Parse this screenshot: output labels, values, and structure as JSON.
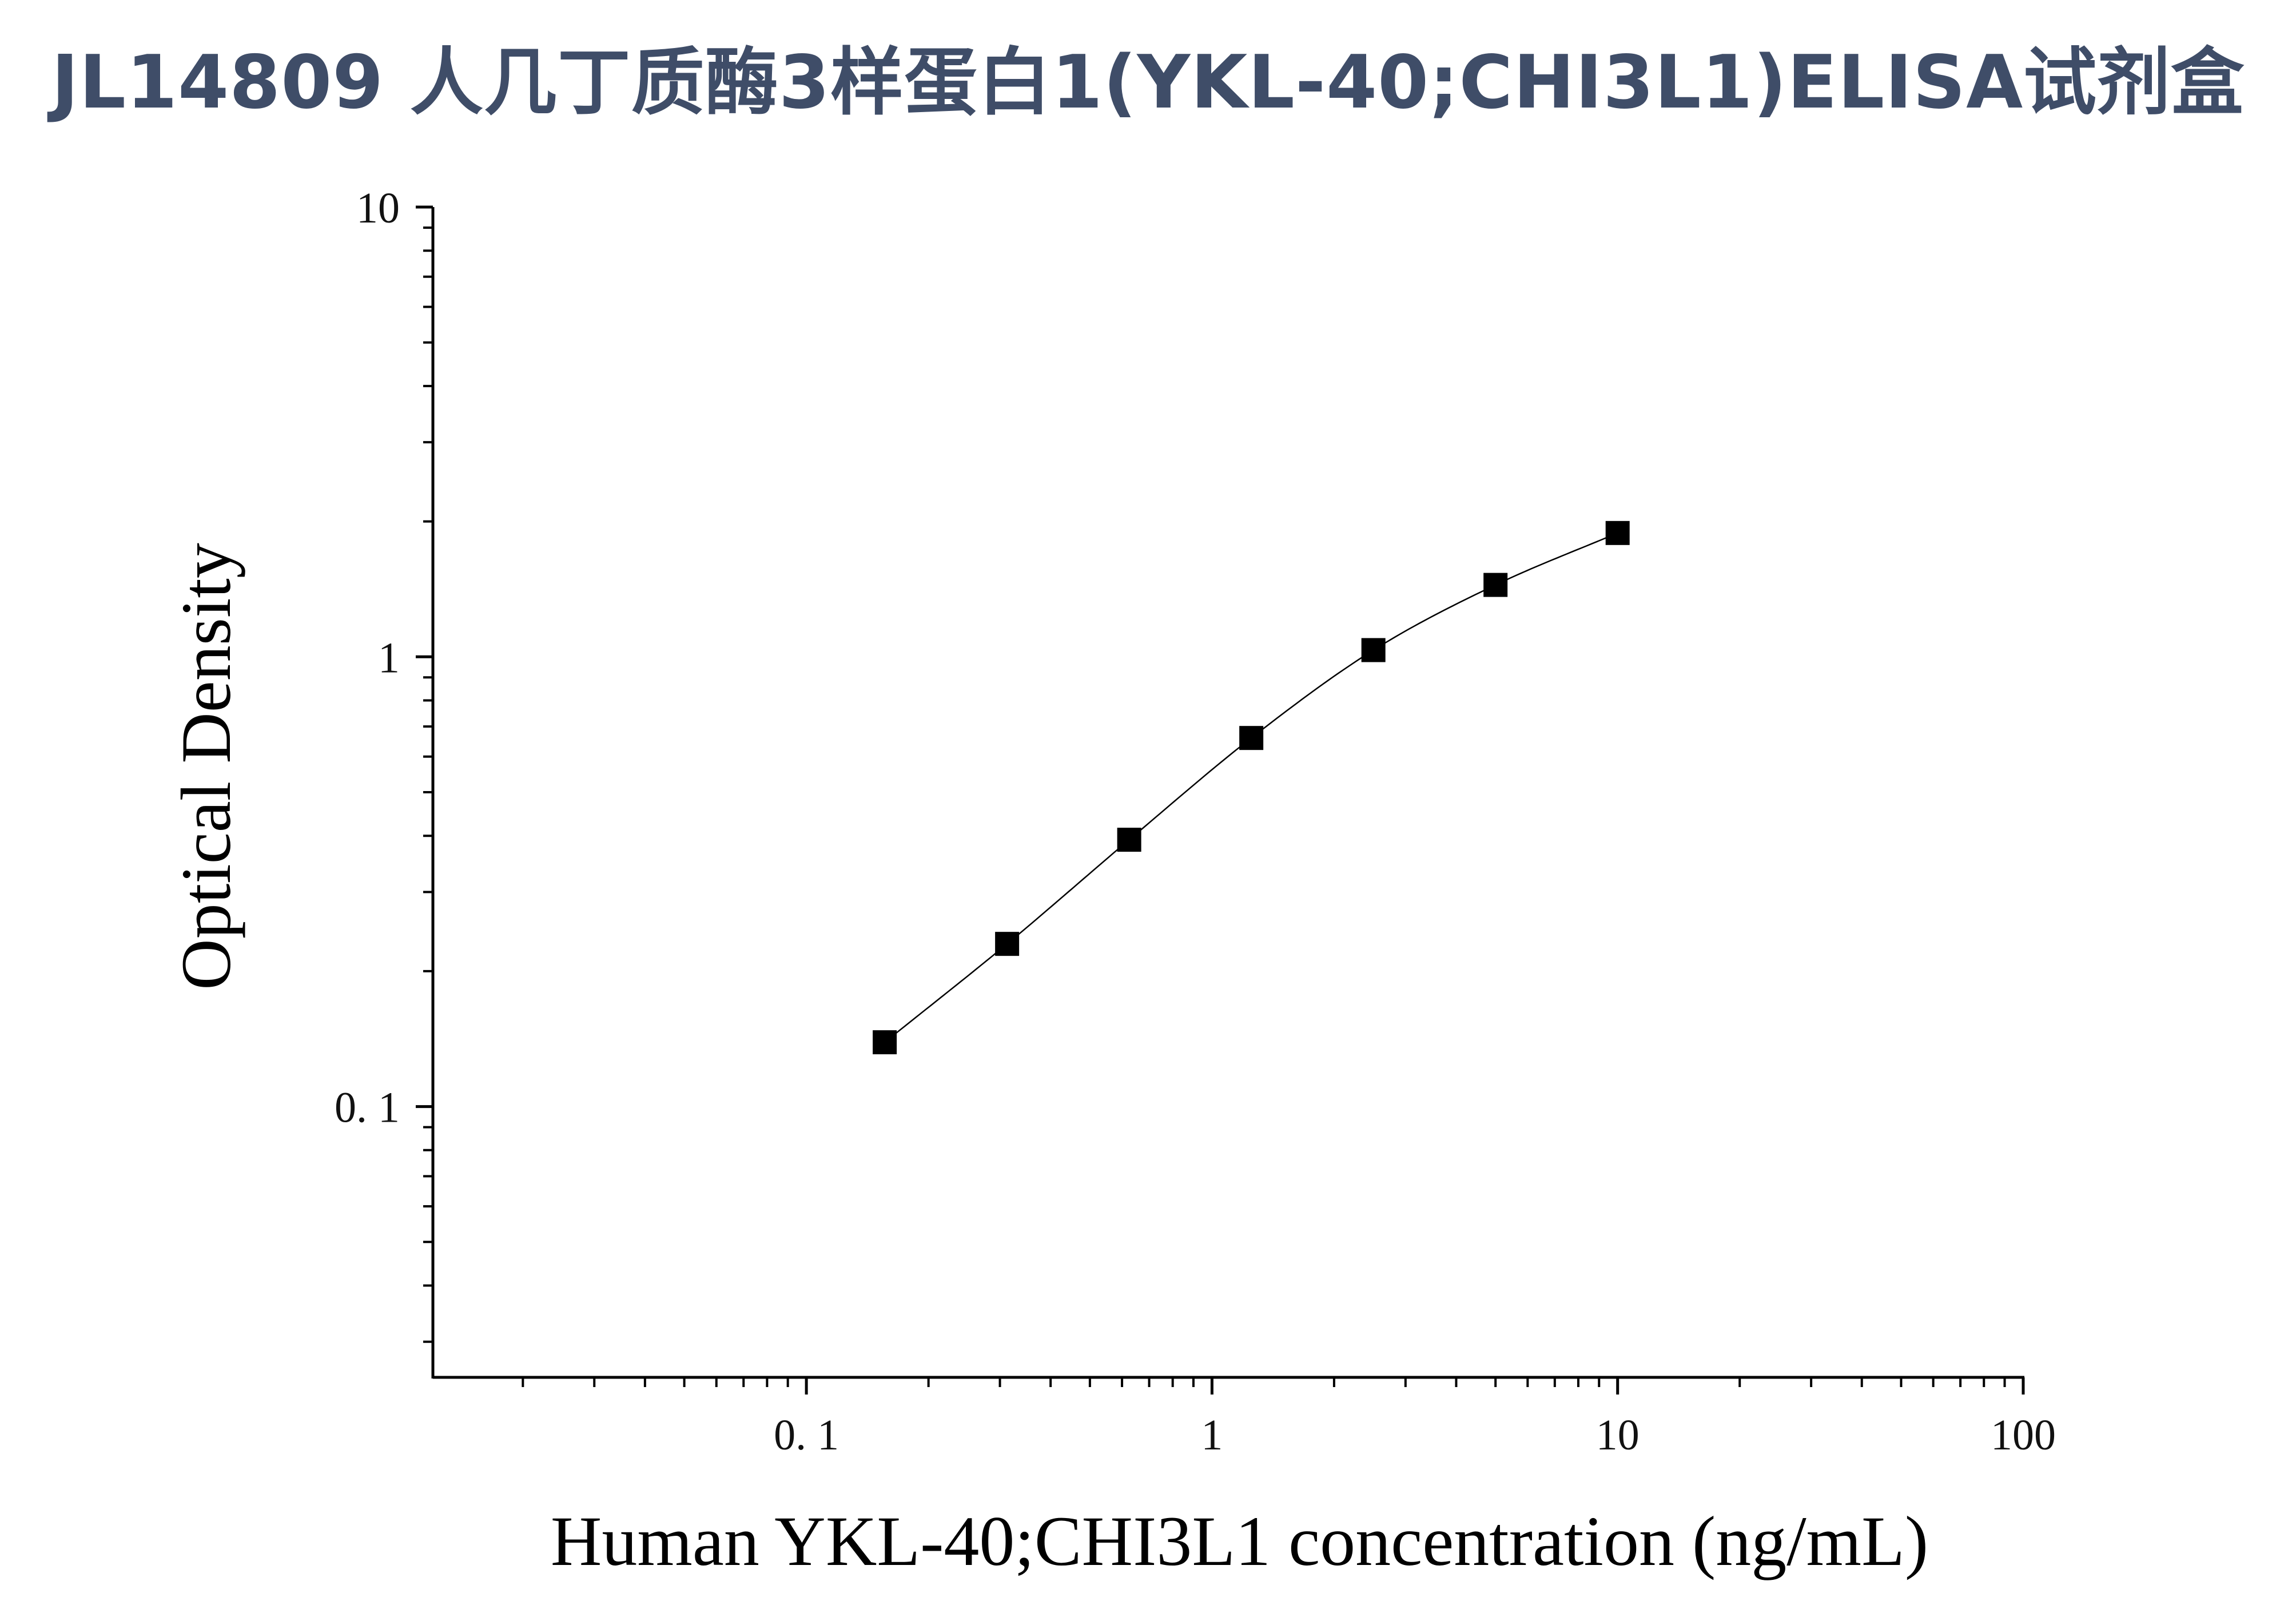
{
  "title": "JL14809 人几丁质酶3样蛋白1(YKL-40;CHI3L1)ELISA试剂盒",
  "chart_data": {
    "type": "scatter",
    "title": "JL14809 人几丁质酶3样蛋白1(YKL-40;CHI3L1)ELISA试剂盒",
    "xlabel": "Human YKL-40;CHI3L1 concentration (ng/mL)",
    "ylabel": "Optical Density",
    "xscale": "log",
    "yscale": "log",
    "xlim": [
      0.012,
      100
    ],
    "ylim": [
      0.025,
      10
    ],
    "x_ticks": [
      {
        "value": 0.1,
        "label": "0. 1"
      },
      {
        "value": 1,
        "label": "1"
      },
      {
        "value": 10,
        "label": "10"
      },
      {
        "value": 100,
        "label": "100"
      }
    ],
    "y_ticks": [
      {
        "value": 0.1,
        "label": "0. 1"
      },
      {
        "value": 1,
        "label": "1"
      },
      {
        "value": 10,
        "label": "10"
      }
    ],
    "grid": false,
    "legend": "none",
    "marker": "square",
    "fit_line": true,
    "colors": {
      "title": "#3f4d68",
      "series": "#000000",
      "axes": "#000000"
    },
    "series": [
      {
        "x": [
          0.156,
          0.3125,
          0.625,
          1.25,
          2.5,
          5,
          10
        ],
        "y": [
          0.139,
          0.23,
          0.392,
          0.66,
          1.035,
          1.445,
          1.885
        ]
      }
    ]
  }
}
